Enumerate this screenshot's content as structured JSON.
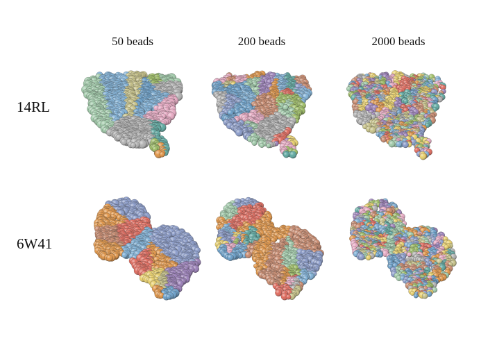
{
  "columns": [
    {
      "label": "50 beads"
    },
    {
      "label": "200 beads"
    },
    {
      "label": "2000 beads"
    }
  ],
  "rows": [
    {
      "label": "14RL"
    },
    {
      "label": "6W41"
    }
  ],
  "palette": [
    "#6a9fc9",
    "#e06a5d",
    "#9fc9a8",
    "#e8cf6a",
    "#c6c187",
    "#9a7fb8",
    "#5ea8a0",
    "#e09446",
    "#e6a9c2",
    "#9dbd64",
    "#b1b1b1",
    "#8a9bc9",
    "#c98a6e",
    "#7fb0d6"
  ]
}
